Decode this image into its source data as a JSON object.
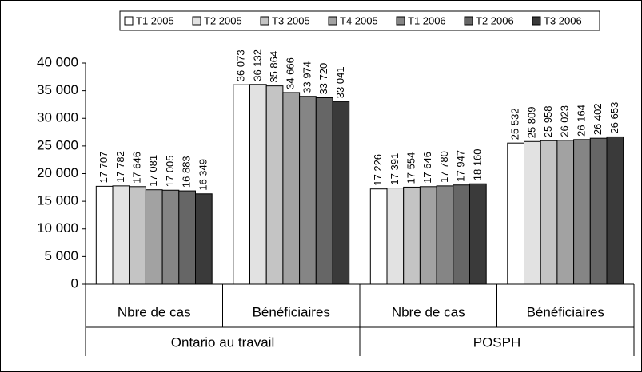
{
  "chart_data": {
    "type": "bar",
    "categories": [
      "Nbre de cas",
      "Bénéficiaires",
      "Nbre de cas",
      "Bénéficiaires"
    ],
    "group_labels": [
      "Ontario au travail",
      "POSPH"
    ],
    "legend": "top",
    "ylim": [
      0,
      40000
    ],
    "yticks": [
      0,
      {
        "value": 5000,
        "label": "5 000"
      },
      {
        "value": 10000,
        "label": "10 000"
      },
      {
        "value": 15000,
        "label": "15 000"
      },
      {
        "value": 20000,
        "label": "20 000"
      },
      {
        "value": 25000,
        "label": "25 000"
      },
      {
        "value": 30000,
        "label": "30 000"
      },
      {
        "value": 35000,
        "label": "35 000"
      },
      {
        "value": 40000,
        "label": "40 000"
      }
    ],
    "series": [
      {
        "name": "T1 2005",
        "color": "#ffffff",
        "values": [
          17707,
          36073,
          17226,
          25532
        ],
        "value_labels": [
          "17 707",
          "36 073",
          "17 226",
          "25 532"
        ]
      },
      {
        "name": "T2 2005",
        "color": "#e2e2e2",
        "values": [
          17782,
          36132,
          17391,
          25809
        ],
        "value_labels": [
          "17 782",
          "36 132",
          "17 391",
          "25 809"
        ]
      },
      {
        "name": "T3 2005",
        "color": "#c4c4c4",
        "values": [
          17646,
          35864,
          17554,
          25958
        ],
        "value_labels": [
          "17 646",
          "35 864",
          "17 554",
          "25 958"
        ]
      },
      {
        "name": "T4 2005",
        "color": "#a2a2a2",
        "values": [
          17081,
          34666,
          17646,
          26023
        ],
        "value_labels": [
          "17 081",
          "34 666",
          "17 646",
          "26 023"
        ]
      },
      {
        "name": "T1 2006",
        "color": "#858585",
        "values": [
          17005,
          33974,
          17780,
          26164
        ],
        "value_labels": [
          "17 005",
          "33 974",
          "17 780",
          "26 164"
        ]
      },
      {
        "name": "T2 2006",
        "color": "#666666",
        "values": [
          16883,
          33720,
          17947,
          26402
        ],
        "value_labels": [
          "16 883",
          "33 720",
          "17 947",
          "26 402"
        ]
      },
      {
        "name": "T3 2006",
        "color": "#3a3a3a",
        "values": [
          16349,
          33041,
          18160,
          26653
        ],
        "value_labels": [
          "16 349",
          "33 041",
          "18 160",
          "26 653"
        ]
      }
    ]
  }
}
